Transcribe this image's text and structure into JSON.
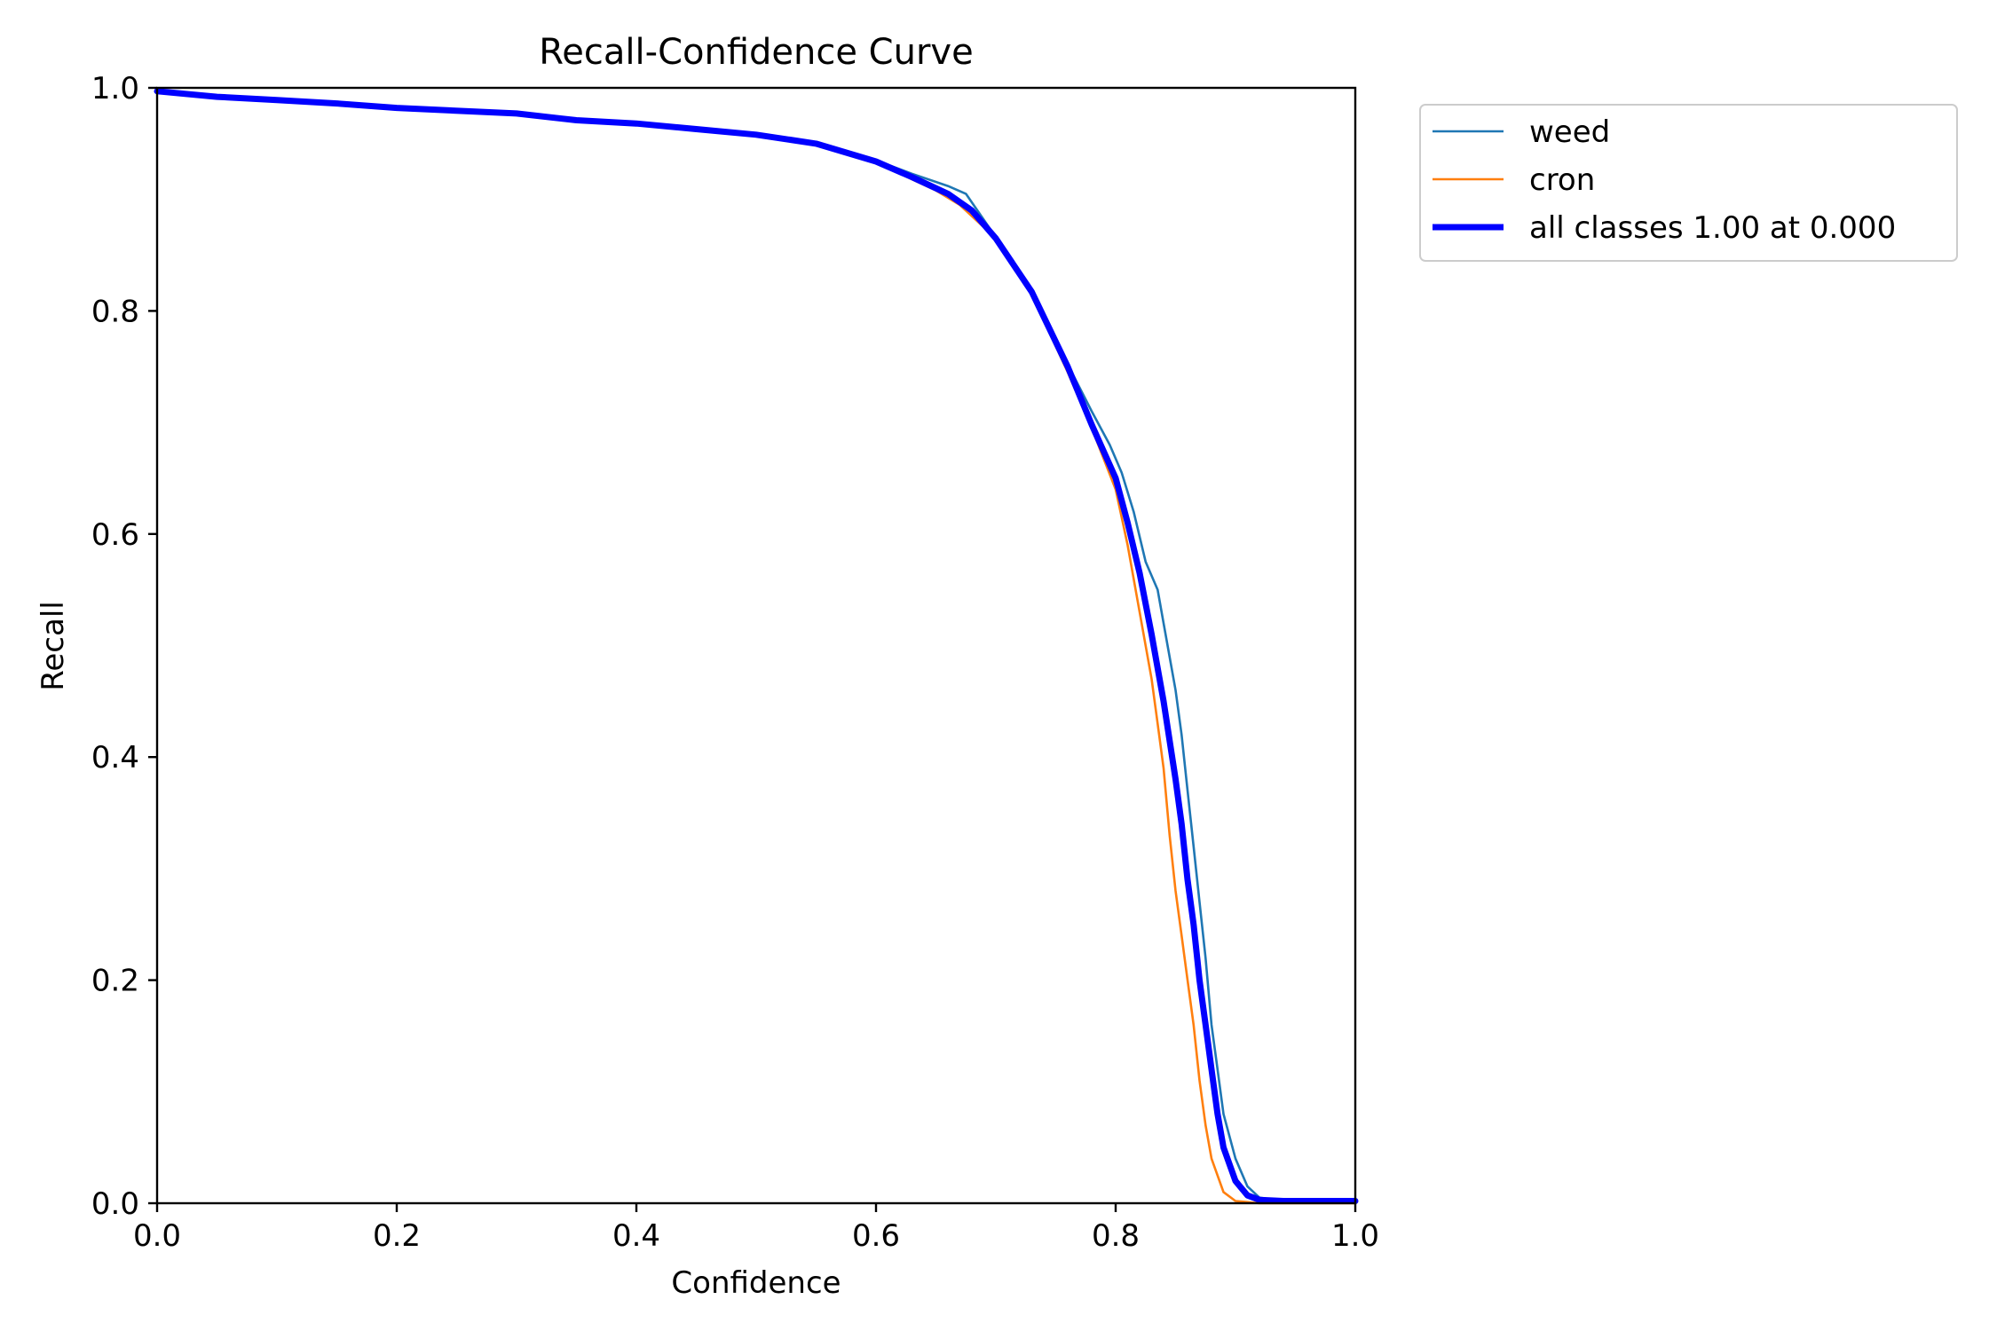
{
  "chart_data": {
    "type": "line",
    "title": "Recall-Confidence Curve",
    "xlabel": "Confidence",
    "ylabel": "Recall",
    "xlim": [
      0,
      1
    ],
    "ylim": [
      0,
      1
    ],
    "grid": false,
    "legend_placement": "outside-top-right",
    "x_ticks": [
      "0.0",
      "0.2",
      "0.4",
      "0.6",
      "0.8",
      "1.0"
    ],
    "y_ticks": [
      "0.0",
      "0.2",
      "0.4",
      "0.6",
      "0.8",
      "1.0"
    ],
    "series": [
      {
        "name": "weed",
        "color": "#1f77b4",
        "x": [
          0.0,
          0.05,
          0.1,
          0.15,
          0.2,
          0.3,
          0.35,
          0.4,
          0.45,
          0.5,
          0.55,
          0.6,
          0.63,
          0.66,
          0.675,
          0.7,
          0.73,
          0.76,
          0.78,
          0.795,
          0.805,
          0.815,
          0.825,
          0.835,
          0.84,
          0.85,
          0.855,
          0.86,
          0.865,
          0.87,
          0.875,
          0.88,
          0.885,
          0.89,
          0.9,
          0.91,
          0.92,
          0.94,
          1.0
        ],
        "y": [
          0.997,
          0.992,
          0.989,
          0.986,
          0.982,
          0.977,
          0.971,
          0.968,
          0.963,
          0.958,
          0.95,
          0.935,
          0.923,
          0.912,
          0.905,
          0.866,
          0.818,
          0.752,
          0.71,
          0.68,
          0.655,
          0.62,
          0.575,
          0.55,
          0.52,
          0.46,
          0.42,
          0.37,
          0.32,
          0.27,
          0.22,
          0.16,
          0.12,
          0.08,
          0.04,
          0.015,
          0.005,
          0.002,
          0.002
        ]
      },
      {
        "name": "cron",
        "color": "#ff7f0e",
        "x": [
          0.0,
          0.05,
          0.1,
          0.15,
          0.2,
          0.3,
          0.35,
          0.4,
          0.45,
          0.5,
          0.55,
          0.6,
          0.63,
          0.65,
          0.67,
          0.7,
          0.73,
          0.76,
          0.78,
          0.8,
          0.81,
          0.82,
          0.83,
          0.835,
          0.84,
          0.845,
          0.85,
          0.855,
          0.86,
          0.865,
          0.87,
          0.875,
          0.88,
          0.89,
          0.9,
          0.92,
          1.0
        ],
        "y": [
          0.997,
          0.992,
          0.989,
          0.986,
          0.982,
          0.977,
          0.971,
          0.968,
          0.964,
          0.959,
          0.951,
          0.934,
          0.918,
          0.908,
          0.895,
          0.865,
          0.815,
          0.745,
          0.695,
          0.64,
          0.59,
          0.53,
          0.47,
          0.43,
          0.39,
          0.33,
          0.28,
          0.24,
          0.2,
          0.16,
          0.11,
          0.07,
          0.04,
          0.01,
          0.002,
          0.0,
          0.0
        ]
      },
      {
        "name": "all classes 1.00 at 0.000",
        "color": "#0000ff",
        "x": [
          0.0,
          0.05,
          0.1,
          0.15,
          0.2,
          0.3,
          0.35,
          0.4,
          0.45,
          0.5,
          0.55,
          0.6,
          0.63,
          0.66,
          0.68,
          0.7,
          0.73,
          0.76,
          0.78,
          0.8,
          0.81,
          0.82,
          0.83,
          0.84,
          0.85,
          0.855,
          0.86,
          0.865,
          0.87,
          0.875,
          0.88,
          0.885,
          0.89,
          0.9,
          0.91,
          0.92,
          0.94,
          1.0
        ],
        "y": [
          0.997,
          0.992,
          0.989,
          0.986,
          0.982,
          0.977,
          0.971,
          0.968,
          0.963,
          0.958,
          0.95,
          0.934,
          0.92,
          0.905,
          0.89,
          0.865,
          0.817,
          0.75,
          0.698,
          0.65,
          0.61,
          0.565,
          0.51,
          0.45,
          0.38,
          0.34,
          0.29,
          0.25,
          0.2,
          0.16,
          0.12,
          0.08,
          0.05,
          0.02,
          0.007,
          0.003,
          0.002,
          0.002
        ]
      }
    ]
  }
}
